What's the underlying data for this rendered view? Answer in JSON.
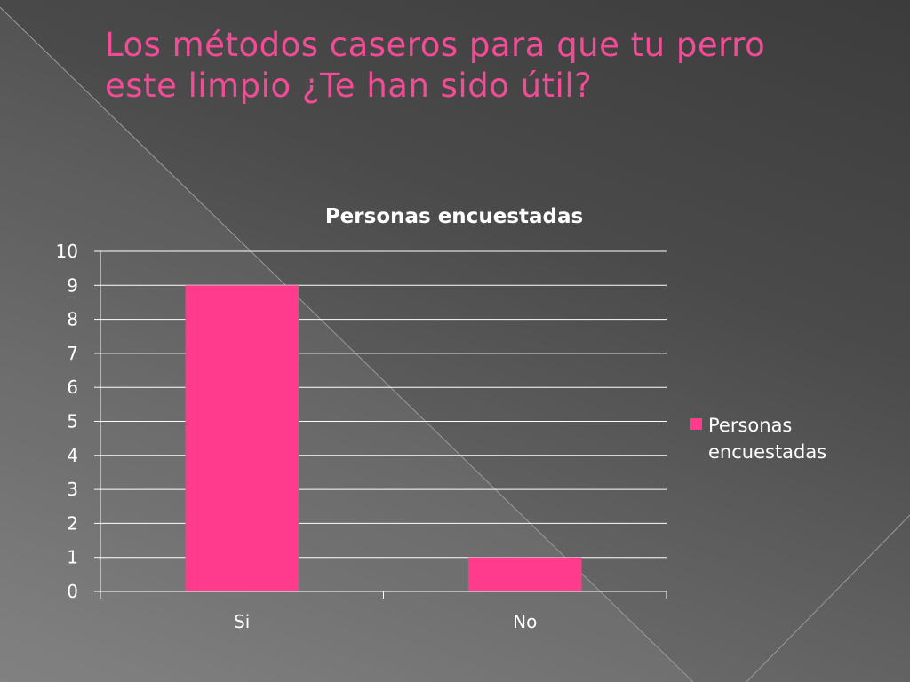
{
  "slide": {
    "title": "Los métodos caseros para que tu perro este limpio ¿Te han sido útil?"
  },
  "colors": {
    "title": "#f24c97",
    "bar": "#ff3b8d",
    "text": "#ffffff",
    "gridline": "#ffffff"
  },
  "chart_data": {
    "type": "bar",
    "title": "Personas encuestadas",
    "categories": [
      "Si",
      "No"
    ],
    "series": [
      {
        "name": "Personas encuestadas",
        "values": [
          9,
          1
        ]
      }
    ],
    "ylim": [
      0,
      10
    ],
    "yticks": [
      0,
      1,
      2,
      3,
      4,
      5,
      6,
      7,
      8,
      9,
      10
    ],
    "xlabel": "",
    "ylabel": "",
    "grid": true,
    "legend": {
      "position": "right",
      "lines": [
        "Personas",
        "encuestadas"
      ]
    }
  }
}
